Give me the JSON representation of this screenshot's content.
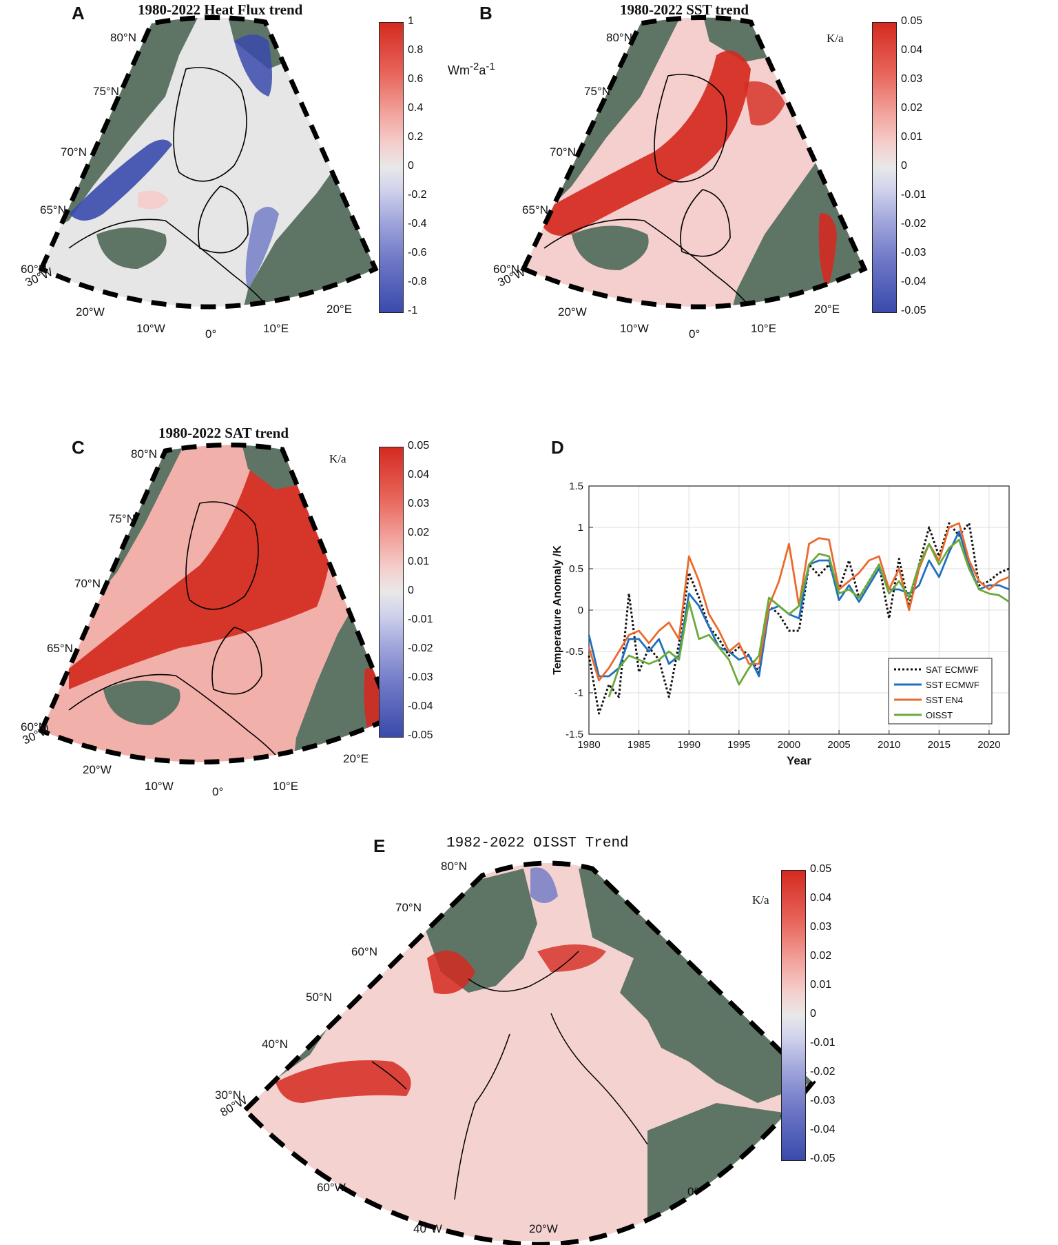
{
  "panels": {
    "a": {
      "letter": "A",
      "title": "1980-2022 Heat Flux trend",
      "unit_main": "Wm",
      "unit_sup1": "-2",
      "unit_mid": "a",
      "unit_sup2": "-1",
      "ticks": [
        "1",
        "0.8",
        "0.6",
        "0.4",
        "0.2",
        "0",
        "-0.2",
        "-0.4",
        "-0.6",
        "-0.8",
        "-1"
      ],
      "lat_labels": [
        "80°N",
        "75°N",
        "70°N",
        "65°N",
        "60°N"
      ],
      "lon_labels": [
        "30°W",
        "20°W",
        "10°W",
        "0°",
        "10°E",
        "20°E"
      ]
    },
    "b": {
      "letter": "B",
      "title": "1980-2022 SST trend",
      "unit": "K/a",
      "ticks": [
        "0.05",
        "0.04",
        "0.03",
        "0.02",
        "0.01",
        "0",
        "-0.01",
        "-0.02",
        "-0.03",
        "-0.04",
        "-0.05"
      ],
      "lat_labels": [
        "80°N",
        "75°N",
        "70°N",
        "65°N",
        "60°N"
      ],
      "lon_labels": [
        "30°W",
        "20°W",
        "10°W",
        "0°",
        "10°E",
        "20°E"
      ]
    },
    "c": {
      "letter": "C",
      "title": "1980-2022 SAT trend",
      "unit": "K/a",
      "ticks": [
        "0.05",
        "0.04",
        "0.03",
        "0.02",
        "0.01",
        "0",
        "-0.01",
        "-0.02",
        "-0.03",
        "-0.04",
        "-0.05"
      ],
      "lat_labels": [
        "80°N",
        "75°N",
        "70°N",
        "65°N",
        "60°N"
      ],
      "lon_labels": [
        "30°W",
        "20°W",
        "10°W",
        "0°",
        "10°E",
        "20°E"
      ]
    },
    "d": {
      "letter": "D"
    },
    "e": {
      "letter": "E",
      "title": "1982-2022 OISST Trend",
      "unit": "K/a",
      "ticks": [
        "0.05",
        "0.04",
        "0.03",
        "0.02",
        "0.01",
        "0",
        "-0.01",
        "-0.02",
        "-0.03",
        "-0.04",
        "-0.05"
      ],
      "lat_labels": [
        "80°N",
        "70°N",
        "60°N",
        "50°N",
        "40°N",
        "30°N"
      ],
      "lon_labels": [
        "80°W",
        "60°W",
        "40°W",
        "20°W",
        "0°"
      ]
    }
  },
  "colors": {
    "land": "#5e7566",
    "ocean_neutral": "#e6e6e6",
    "warm": "#d42a20",
    "cool": "#3a4aac"
  },
  "chart_data": {
    "type": "line",
    "xlabel": "Year",
    "ylabel": "Temperature Anomaly /K",
    "xlim": [
      1980,
      2022
    ],
    "ylim": [
      -1.5,
      1.5
    ],
    "xticks": [
      1980,
      1985,
      1990,
      1995,
      2000,
      2005,
      2010,
      2015,
      2020
    ],
    "yticks": [
      -1.5,
      -1,
      -0.5,
      0,
      0.5,
      1,
      1.5
    ],
    "grid": true,
    "legend_position": "lower-right",
    "series": [
      {
        "name": "SAT ECMWF",
        "color": "#111111",
        "style": "dotted",
        "x": [
          1980,
          1981,
          1982,
          1983,
          1984,
          1985,
          1986,
          1987,
          1988,
          1989,
          1990,
          1991,
          1992,
          1993,
          1994,
          1995,
          1996,
          1997,
          1998,
          1999,
          2000,
          2001,
          2002,
          2003,
          2004,
          2005,
          2006,
          2007,
          2008,
          2009,
          2010,
          2011,
          2012,
          2013,
          2014,
          2015,
          2016,
          2017,
          2018,
          2019,
          2020,
          2021,
          2022
        ],
        "y": [
          -0.55,
          -1.25,
          -0.9,
          -1.05,
          0.2,
          -0.75,
          -0.45,
          -0.6,
          -1.05,
          -0.4,
          0.45,
          0.15,
          -0.2,
          -0.35,
          -0.55,
          -0.45,
          -0.55,
          -0.75,
          0.05,
          -0.05,
          -0.25,
          -0.25,
          0.55,
          0.42,
          0.55,
          0.25,
          0.6,
          0.15,
          0.35,
          0.55,
          -0.1,
          0.62,
          0.05,
          0.55,
          1.0,
          0.65,
          1.05,
          0.9,
          1.05,
          0.3,
          0.35,
          0.45,
          0.5
        ]
      },
      {
        "name": "SST ECMWF",
        "color": "#1f6fbf",
        "style": "solid",
        "x": [
          1980,
          1981,
          1982,
          1983,
          1984,
          1985,
          1986,
          1987,
          1988,
          1989,
          1990,
          1991,
          1992,
          1993,
          1994,
          1995,
          1996,
          1997,
          1998,
          1999,
          2000,
          2001,
          2002,
          2003,
          2004,
          2005,
          2006,
          2007,
          2008,
          2009,
          2010,
          2011,
          2012,
          2013,
          2014,
          2015,
          2016,
          2017,
          2018,
          2019,
          2020,
          2021,
          2022
        ],
        "y": [
          -0.3,
          -0.8,
          -0.8,
          -0.7,
          -0.35,
          -0.35,
          -0.5,
          -0.35,
          -0.65,
          -0.55,
          0.2,
          0.05,
          -0.2,
          -0.45,
          -0.5,
          -0.6,
          -0.55,
          -0.8,
          0.0,
          0.05,
          -0.05,
          -0.1,
          0.55,
          0.6,
          0.6,
          0.12,
          0.3,
          0.1,
          0.3,
          0.5,
          0.25,
          0.25,
          0.2,
          0.3,
          0.6,
          0.4,
          0.7,
          0.95,
          0.55,
          0.25,
          0.3,
          0.3,
          0.25
        ]
      },
      {
        "name": "SST EN4",
        "color": "#ea6a2e",
        "style": "solid",
        "x": [
          1980,
          1981,
          1982,
          1983,
          1984,
          1985,
          1986,
          1987,
          1988,
          1989,
          1990,
          1991,
          1992,
          1993,
          1994,
          1995,
          1996,
          1997,
          1998,
          1999,
          2000,
          2001,
          2002,
          2003,
          2004,
          2005,
          2006,
          2007,
          2008,
          2009,
          2010,
          2011,
          2012,
          2013,
          2014,
          2015,
          2016,
          2017,
          2018,
          2019,
          2020,
          2021,
          2022
        ],
        "y": [
          -0.45,
          -0.85,
          -0.7,
          -0.5,
          -0.3,
          -0.25,
          -0.4,
          -0.25,
          -0.15,
          -0.35,
          0.65,
          0.35,
          -0.05,
          -0.25,
          -0.5,
          -0.4,
          -0.65,
          -0.65,
          0.05,
          0.35,
          0.8,
          0.05,
          0.8,
          0.87,
          0.85,
          0.25,
          0.35,
          0.45,
          0.6,
          0.65,
          0.25,
          0.5,
          0.0,
          0.5,
          0.8,
          0.6,
          1.0,
          1.05,
          0.6,
          0.35,
          0.25,
          0.35,
          0.4
        ]
      },
      {
        "name": "OISST",
        "color": "#6aaa3a",
        "style": "solid",
        "x": [
          1982,
          1983,
          1984,
          1985,
          1986,
          1987,
          1988,
          1989,
          1990,
          1991,
          1992,
          1993,
          1994,
          1995,
          1996,
          1997,
          1998,
          1999,
          2000,
          2001,
          2002,
          2003,
          2004,
          2005,
          2006,
          2007,
          2008,
          2009,
          2010,
          2011,
          2012,
          2013,
          2014,
          2015,
          2016,
          2017,
          2018,
          2019,
          2020,
          2021,
          2022
        ],
        "y": [
          -1.05,
          -0.7,
          -0.55,
          -0.6,
          -0.65,
          -0.6,
          -0.5,
          -0.6,
          0.1,
          -0.35,
          -0.3,
          -0.45,
          -0.6,
          -0.9,
          -0.7,
          -0.55,
          0.15,
          0.05,
          -0.05,
          0.05,
          0.55,
          0.68,
          0.65,
          0.2,
          0.25,
          0.15,
          0.35,
          0.55,
          0.2,
          0.35,
          0.15,
          0.55,
          0.8,
          0.55,
          0.75,
          0.85,
          0.5,
          0.25,
          0.2,
          0.18,
          0.1
        ]
      }
    ]
  }
}
